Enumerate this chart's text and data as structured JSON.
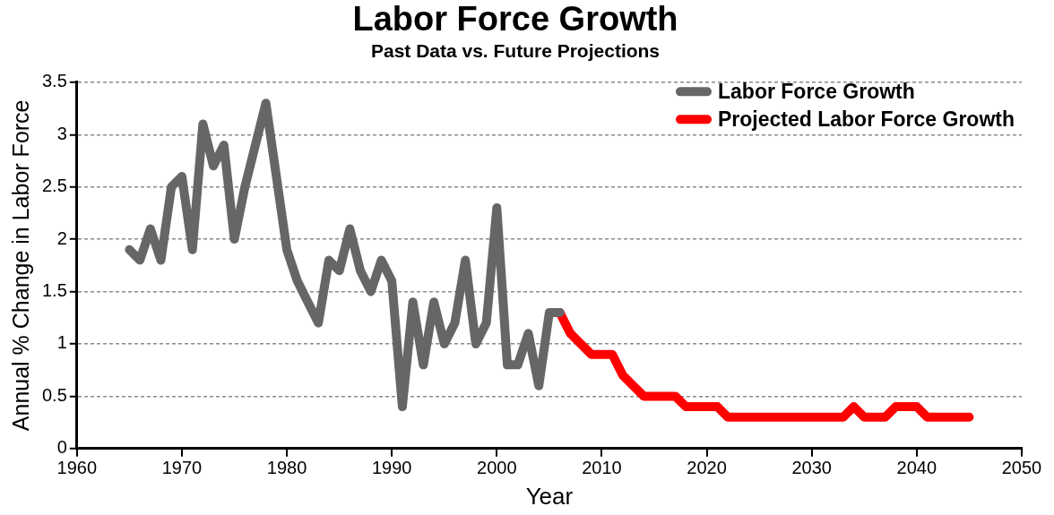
{
  "chart_data": {
    "type": "line",
    "title": "Labor Force Growth",
    "subtitle": "Past Data vs. Future Projections",
    "xlabel": "Year",
    "ylabel": "Annual % Change in Labor Force",
    "xlim": [
      1960,
      2050
    ],
    "xticks": [
      1960,
      1970,
      1980,
      1990,
      2000,
      2010,
      2020,
      2030,
      2040,
      2050
    ],
    "ylim": [
      0,
      3.5
    ],
    "yticks": [
      0,
      0.5,
      1,
      1.5,
      2,
      2.5,
      3,
      3.5
    ],
    "grid": "y",
    "legend": "top right",
    "marker": "none",
    "line_style": "solid",
    "series": [
      {
        "name": "Labor Force Growth",
        "color": "#666666",
        "x": [
          1965,
          1966,
          1967,
          1968,
          1969,
          1970,
          1971,
          1972,
          1973,
          1974,
          1975,
          1976,
          1977,
          1978,
          1979,
          1980,
          1981,
          1982,
          1983,
          1984,
          1985,
          1986,
          1987,
          1988,
          1989,
          1990,
          1991,
          1992,
          1993,
          1994,
          1995,
          1996,
          1997,
          1998,
          1999,
          2000,
          2001,
          2002,
          2003,
          2004,
          2005,
          2006
        ],
        "values": [
          1.9,
          1.8,
          2.1,
          1.8,
          2.5,
          2.6,
          1.9,
          3.1,
          2.7,
          2.9,
          2.0,
          2.5,
          2.9,
          3.3,
          2.6,
          1.9,
          1.6,
          1.4,
          1.2,
          1.8,
          1.7,
          2.1,
          1.7,
          1.5,
          1.8,
          1.6,
          0.4,
          1.4,
          0.8,
          1.4,
          1.0,
          1.2,
          1.8,
          1.0,
          1.2,
          2.3,
          0.8,
          0.8,
          1.1,
          0.6,
          1.3,
          1.3
        ]
      },
      {
        "name": "Projected Labor Force Growth",
        "color": "#ff0000",
        "x": [
          2006,
          2007,
          2008,
          2009,
          2010,
          2011,
          2012,
          2013,
          2014,
          2015,
          2016,
          2017,
          2018,
          2019,
          2020,
          2021,
          2022,
          2023,
          2024,
          2025,
          2026,
          2027,
          2028,
          2029,
          2030,
          2031,
          2032,
          2033,
          2034,
          2035,
          2036,
          2037,
          2038,
          2039,
          2040,
          2041,
          2042,
          2043,
          2044,
          2045
        ],
        "values": [
          1.3,
          1.1,
          1.0,
          0.9,
          0.9,
          0.9,
          0.7,
          0.6,
          0.5,
          0.5,
          0.5,
          0.5,
          0.4,
          0.4,
          0.4,
          0.4,
          0.3,
          0.3,
          0.3,
          0.3,
          0.3,
          0.3,
          0.3,
          0.3,
          0.3,
          0.3,
          0.3,
          0.3,
          0.4,
          0.3,
          0.3,
          0.3,
          0.4,
          0.4,
          0.4,
          0.3,
          0.3,
          0.3,
          0.3,
          0.3
        ]
      }
    ]
  }
}
